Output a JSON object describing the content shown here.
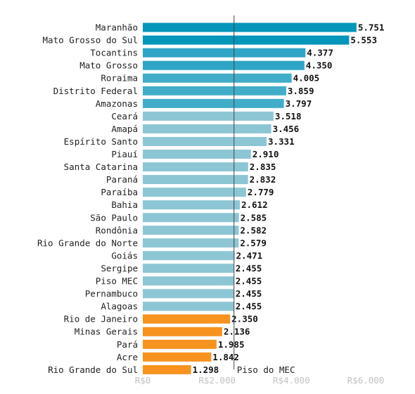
{
  "chart_data": {
    "type": "bar",
    "orientation": "horizontal",
    "categories": [
      "Maranhão",
      "Mato Grosso do Sul",
      "Tocantins",
      "Mato Grosso",
      "Roraima",
      "Distrito Federal",
      "Amazonas",
      "Ceará",
      "Amapá",
      "Espírito Santo",
      "Piauí",
      "Santa Catarina",
      "Paraná",
      "Paraíba",
      "Bahia",
      "São Paulo",
      "Rondônia",
      "Rio Grande do Norte",
      "Goiás",
      "Sergipe",
      "Piso MEC",
      "Pernambuco",
      "Alagoas",
      "Rio de Janeiro",
      "Minas Gerais",
      "Pará",
      "Acre",
      "Rio Grande do Sul"
    ],
    "values": [
      5751,
      5553,
      4377,
      4350,
      4005,
      3859,
      3797,
      3518,
      3456,
      3331,
      2910,
      2835,
      2832,
      2779,
      2612,
      2585,
      2582,
      2579,
      2471,
      2455,
      2455,
      2455,
      2455,
      2350,
      2136,
      1985,
      1842,
      1298
    ],
    "value_labels": [
      "5.751",
      "5.553",
      "4.377",
      "4.350",
      "4.005",
      "3.859",
      "3.797",
      "3.518",
      "3.456",
      "3.331",
      "2.910",
      "2.835",
      "2.832",
      "2.779",
      "2.612",
      "2.585",
      "2.582",
      "2.579",
      "2.471",
      "2.455",
      "2.455",
      "2.455",
      "2.455",
      "2.350",
      "2.136",
      "1.985",
      "1.842",
      "1.298"
    ],
    "bar_colors": [
      "#0596bb",
      "#0596bb",
      "#2ea5c6",
      "#2ea5c6",
      "#41adc9",
      "#41adc9",
      "#41adc9",
      "#8cc6d4",
      "#8cc6d4",
      "#8cc6d4",
      "#8cc6d4",
      "#8cc6d4",
      "#8cc6d4",
      "#8cc6d4",
      "#8cc6d4",
      "#8cc6d4",
      "#8cc6d4",
      "#8cc6d4",
      "#8cc6d4",
      "#8cc6d4",
      "#8cc6d4",
      "#8cc6d4",
      "#8cc6d4",
      "#f7921f",
      "#f7921f",
      "#f7921f",
      "#f7921f",
      "#f7921f"
    ],
    "x_ticks": [
      0,
      2000,
      4000,
      6000
    ],
    "x_tick_labels": [
      "R$0",
      "R$2.000",
      "R$4.000",
      "R$6.000"
    ],
    "xlim": [
      0,
      6500
    ],
    "reference_line": {
      "value": 2455,
      "label": "Piso do MEC",
      "color": "#444444"
    },
    "title": "",
    "xlabel": "",
    "ylabel": ""
  }
}
